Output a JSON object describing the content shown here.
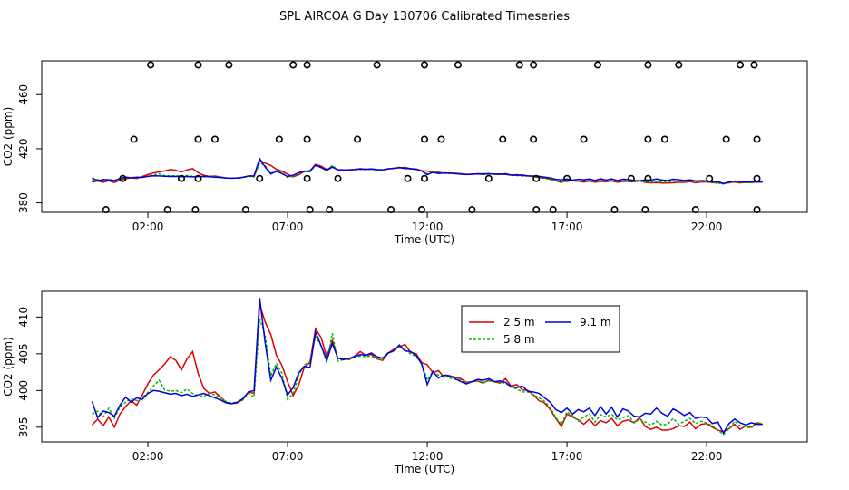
{
  "title": "SPL AIRCOA G  Day 130706  Calibrated Timeseries",
  "colors": {
    "s25": "#dd0000",
    "s58": "#00bb00",
    "s91": "#0000dd",
    "circle": "#000000"
  },
  "chart_data": [
    {
      "type": "scatter",
      "panel": "top",
      "xlabel": "Time (UTC)",
      "ylabel": "CO2 (ppm)",
      "xlim": [
        -1.8,
        25.6
      ],
      "ylim": [
        373,
        485
      ],
      "xticks": [
        2,
        7,
        12,
        17,
        22
      ],
      "xtick_labels": [
        "02:00",
        "07:00",
        "12:00",
        "17:00",
        "22:00"
      ],
      "yticks": [
        380,
        420,
        460
      ],
      "ytick_labels": [
        "380",
        "420",
        "460"
      ],
      "flag_points": [
        {
          "x": 0.5,
          "y": 375
        },
        {
          "x": 1.1,
          "y": 398
        },
        {
          "x": 1.5,
          "y": 427
        },
        {
          "x": 2.1,
          "y": 482
        },
        {
          "x": 2.7,
          "y": 375
        },
        {
          "x": 3.2,
          "y": 398
        },
        {
          "x": 3.7,
          "y": 375
        },
        {
          "x": 3.8,
          "y": 398
        },
        {
          "x": 3.8,
          "y": 427
        },
        {
          "x": 3.8,
          "y": 482
        },
        {
          "x": 4.4,
          "y": 427
        },
        {
          "x": 4.9,
          "y": 482
        },
        {
          "x": 5.5,
          "y": 375
        },
        {
          "x": 6.0,
          "y": 398
        },
        {
          "x": 6.7,
          "y": 427
        },
        {
          "x": 7.2,
          "y": 482
        },
        {
          "x": 7.7,
          "y": 398
        },
        {
          "x": 7.7,
          "y": 427
        },
        {
          "x": 7.7,
          "y": 482
        },
        {
          "x": 7.8,
          "y": 375
        },
        {
          "x": 8.5,
          "y": 375
        },
        {
          "x": 8.8,
          "y": 398
        },
        {
          "x": 9.5,
          "y": 427
        },
        {
          "x": 10.2,
          "y": 482
        },
        {
          "x": 10.7,
          "y": 375
        },
        {
          "x": 11.3,
          "y": 398
        },
        {
          "x": 11.8,
          "y": 375
        },
        {
          "x": 11.9,
          "y": 398
        },
        {
          "x": 11.9,
          "y": 427
        },
        {
          "x": 11.9,
          "y": 482
        },
        {
          "x": 12.5,
          "y": 427
        },
        {
          "x": 13.1,
          "y": 482
        },
        {
          "x": 13.6,
          "y": 375
        },
        {
          "x": 14.2,
          "y": 398
        },
        {
          "x": 14.7,
          "y": 427
        },
        {
          "x": 15.3,
          "y": 482
        },
        {
          "x": 15.8,
          "y": 482
        },
        {
          "x": 15.8,
          "y": 427
        },
        {
          "x": 15.9,
          "y": 398
        },
        {
          "x": 15.9,
          "y": 375
        },
        {
          "x": 16.5,
          "y": 375
        },
        {
          "x": 17.0,
          "y": 398
        },
        {
          "x": 17.6,
          "y": 427
        },
        {
          "x": 18.1,
          "y": 482
        },
        {
          "x": 18.7,
          "y": 375
        },
        {
          "x": 19.3,
          "y": 398
        },
        {
          "x": 19.8,
          "y": 375
        },
        {
          "x": 19.9,
          "y": 398
        },
        {
          "x": 19.9,
          "y": 427
        },
        {
          "x": 19.9,
          "y": 482
        },
        {
          "x": 20.5,
          "y": 427
        },
        {
          "x": 21.0,
          "y": 482
        },
        {
          "x": 21.6,
          "y": 375
        },
        {
          "x": 22.1,
          "y": 398
        },
        {
          "x": 22.7,
          "y": 427
        },
        {
          "x": 23.2,
          "y": 482
        },
        {
          "x": 23.7,
          "y": 482
        },
        {
          "x": 23.8,
          "y": 427
        },
        {
          "x": 23.8,
          "y": 398
        },
        {
          "x": 23.8,
          "y": 375
        }
      ]
    },
    {
      "type": "line",
      "panel": "bottom",
      "xlabel": "Time (UTC)",
      "ylabel": "CO2 (ppm)",
      "xlim": [
        -1.8,
        25.6
      ],
      "ylim": [
        393.0,
        413.5
      ],
      "xticks": [
        2,
        7,
        12,
        17,
        22
      ],
      "xtick_labels": [
        "02:00",
        "07:00",
        "12:00",
        "17:00",
        "22:00"
      ],
      "yticks": [
        395,
        400,
        405,
        410
      ],
      "ytick_labels": [
        "395",
        "400",
        "405",
        "410"
      ],
      "x": [
        0.0,
        0.2,
        0.4,
        0.6,
        0.8,
        1.0,
        1.2,
        1.4,
        1.6,
        1.8,
        2.0,
        2.2,
        2.4,
        2.6,
        2.8,
        3.0,
        3.2,
        3.4,
        3.6,
        3.8,
        4.0,
        4.2,
        4.4,
        4.6,
        4.8,
        5.0,
        5.2,
        5.4,
        5.6,
        5.8,
        6.0,
        6.2,
        6.4,
        6.6,
        6.8,
        7.0,
        7.2,
        7.4,
        7.6,
        7.8,
        8.0,
        8.2,
        8.4,
        8.6,
        8.8,
        9.0,
        9.2,
        9.4,
        9.6,
        9.8,
        10.0,
        10.2,
        10.4,
        10.6,
        10.8,
        11.0,
        11.2,
        11.4,
        11.6,
        11.8,
        12.0,
        12.2,
        12.4,
        12.6,
        12.8,
        13.0,
        13.2,
        13.4,
        13.6,
        13.8,
        14.0,
        14.2,
        14.4,
        14.6,
        14.8,
        15.0,
        15.2,
        15.4,
        15.6,
        15.8,
        16.0,
        16.2,
        16.4,
        16.6,
        16.8,
        17.0,
        17.2,
        17.4,
        17.6,
        17.8,
        18.0,
        18.2,
        18.4,
        18.6,
        18.8,
        19.0,
        19.2,
        19.4,
        19.6,
        19.8,
        20.0,
        20.2,
        20.4,
        20.6,
        20.8,
        21.0,
        21.2,
        21.4,
        21.6,
        21.8,
        22.0,
        22.2,
        22.4,
        22.6,
        22.8,
        23.0,
        23.2,
        23.4,
        23.6,
        23.8,
        24.0
      ],
      "series": [
        {
          "name": "2.5 m",
          "color": "#dd0000",
          "values": [
            395.3,
            396.1,
            395.2,
            396.4,
            395.0,
            396.8,
            397.8,
            398.6,
            398.0,
            399.4,
            400.9,
            402.1,
            402.8,
            403.6,
            404.6,
            404.1,
            402.8,
            404.3,
            405.3,
            402.3,
            400.3,
            399.6,
            399.8,
            399.1,
            398.4,
            398.2,
            398.3,
            398.8,
            399.8,
            399.6,
            411.7,
            409.3,
            407.6,
            404.8,
            403.4,
            401.2,
            399.3,
            400.8,
            403.2,
            403.8,
            408.4,
            407.2,
            404.6,
            406.8,
            404.4,
            404.4,
            404.2,
            404.7,
            405.3,
            404.8,
            404.9,
            404.3,
            404.1,
            405.1,
            405.6,
            405.9,
            406.3,
            405.2,
            405.0,
            403.8,
            403.5,
            402.4,
            402.7,
            401.8,
            402.0,
            401.8,
            401.6,
            401.1,
            401.2,
            401.3,
            401.0,
            401.4,
            401.2,
            401.0,
            401.6,
            400.6,
            400.8,
            400.1,
            400.0,
            399.4,
            398.6,
            398.3,
            397.4,
            396.2,
            395.1,
            396.8,
            396.4,
            396.0,
            395.4,
            396.1,
            395.2,
            395.9,
            395.6,
            396.2,
            395.2,
            395.8,
            396.0,
            395.6,
            396.3,
            395.1,
            394.7,
            395.0,
            394.6,
            394.6,
            394.8,
            395.2,
            395.1,
            395.7,
            394.8,
            395.4,
            395.5,
            395.0,
            394.6,
            394.4,
            394.8,
            395.4,
            394.7,
            395.2,
            395.0,
            395.6,
            395.4
          ],
          "labels_note": "legend entry"
        },
        {
          "name": "5.8 m",
          "color": "#00bb00",
          "values": [
            396.8,
            397.2,
            396.4,
            397.6,
            396.2,
            397.8,
            398.4,
            398.9,
            398.6,
            399.1,
            399.7,
            400.6,
            401.4,
            400.1,
            399.9,
            400.0,
            399.7,
            400.2,
            399.6,
            399.3,
            399.2,
            399.6,
            399.4,
            399.0,
            398.5,
            398.3,
            398.4,
            398.7,
            399.6,
            399.1,
            409.8,
            407.4,
            402.0,
            403.7,
            402.3,
            398.8,
            399.6,
            402.1,
            403.5,
            403.9,
            407.4,
            406.1,
            403.8,
            407.8,
            404.0,
            404.2,
            404.3,
            404.5,
            404.7,
            404.6,
            404.7,
            404.3,
            404.2,
            405.2,
            405.3,
            406.0,
            405.5,
            405.0,
            404.6,
            403.7,
            401.4,
            402.6,
            402.1,
            402.0,
            401.7,
            401.5,
            401.4,
            401.0,
            401.2,
            401.4,
            401.1,
            401.3,
            401.2,
            401.1,
            401.0,
            400.5,
            400.2,
            399.8,
            399.8,
            399.4,
            399.0,
            398.5,
            397.7,
            396.3,
            395.4,
            397.1,
            396.6,
            395.8,
            396.4,
            396.8,
            395.7,
            396.7,
            396.4,
            396.8,
            396.0,
            396.3,
            396.6,
            395.6,
            396.1,
            395.7,
            395.3,
            395.8,
            395.3,
            395.4,
            396.2,
            395.4,
            395.8,
            396.2,
            395.5,
            395.8,
            395.6,
            395.2,
            394.6,
            394.0,
            394.8,
            395.8,
            395.2,
            395.0,
            394.9,
            395.7,
            395.4
          ]
        },
        {
          "name": "9.1 m",
          "color": "#0000dd",
          "values": [
            398.5,
            396.3,
            397.2,
            397.0,
            396.5,
            398.0,
            399.1,
            398.4,
            399.0,
            398.8,
            399.6,
            400.0,
            399.9,
            399.7,
            399.5,
            399.6,
            399.3,
            399.5,
            399.2,
            399.4,
            399.6,
            399.3,
            399.0,
            398.7,
            398.3,
            398.2,
            398.4,
            398.9,
            399.8,
            400.0,
            412.6,
            406.4,
            401.4,
            403.2,
            401.6,
            399.4,
            400.4,
            402.4,
            403.3,
            403.1,
            408.0,
            406.1,
            404.1,
            406.4,
            404.4,
            404.2,
            404.4,
            404.6,
            404.9,
            404.8,
            405.1,
            404.6,
            404.4,
            405.1,
            405.4,
            406.2,
            405.4,
            405.3,
            404.8,
            403.6,
            400.8,
            402.6,
            401.7,
            402.1,
            402.0,
            401.6,
            401.2,
            400.9,
            401.2,
            401.5,
            401.4,
            401.6,
            401.2,
            401.3,
            401.1,
            400.5,
            400.4,
            400.6,
            399.9,
            399.8,
            399.6,
            399.0,
            398.4,
            397.4,
            397.0,
            397.6,
            396.8,
            397.4,
            397.1,
            397.6,
            396.6,
            397.8,
            396.8,
            397.7,
            396.4,
            397.5,
            397.2,
            396.5,
            396.4,
            396.9,
            396.8,
            397.6,
            396.9,
            396.5,
            397.5,
            397.1,
            396.6,
            397.0,
            396.2,
            396.4,
            396.3,
            395.5,
            395.7,
            394.2,
            395.5,
            396.1,
            395.6,
            395.3,
            395.6,
            395.4,
            395.4
          ]
        }
      ],
      "legend": {
        "placement": "top-center"
      }
    }
  ]
}
